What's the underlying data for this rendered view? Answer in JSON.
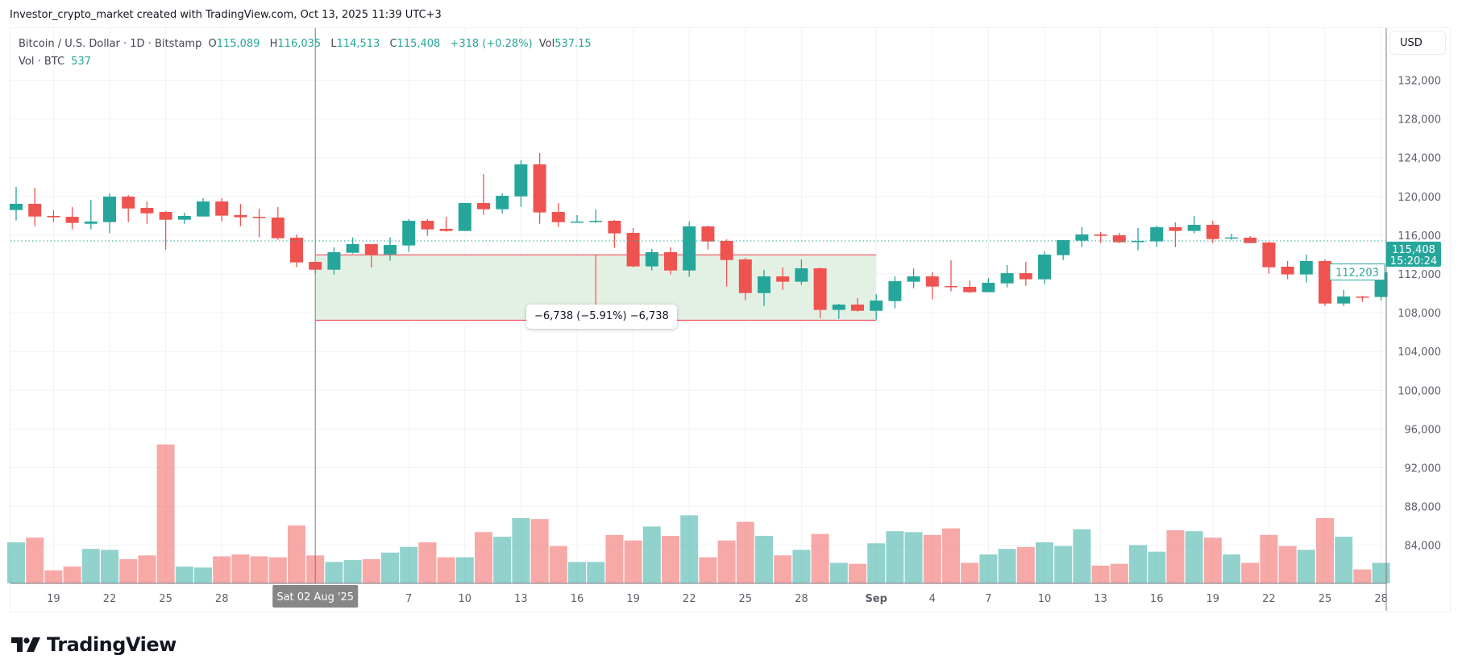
{
  "credit": "Investor_crypto_market created with TradingView.com, Oct 13, 2025 11:39 UTC+3",
  "legend": {
    "symbol": "Bitcoin / U.S. Dollar · 1D · Bitstamp",
    "o_label": "O",
    "o": "115,089",
    "h_label": "H",
    "h": "116,035",
    "l_label": "L",
    "l": "114,513",
    "c_label": "C",
    "c": "115,408",
    "change": "+318 (+0.28%)",
    "vol_label": "Vol",
    "vol": "537.15",
    "vol_series": "Vol · BTC",
    "vol_series_value": "537"
  },
  "currency_button": "USD",
  "last_price_label": "115,408",
  "countdown_label": "15:20:24",
  "crosshair_price_label": "112,203",
  "crosshair_date_label": "Sat 02 Aug '25",
  "measure_label": "−6,738 (−5.91%) −6,738",
  "logo_text": "TradingView",
  "colors": {
    "up": "#26a69a",
    "down": "#ef5350",
    "measure_fill": "#e3f1e4",
    "measure_line": "#f23645"
  },
  "chart_data": {
    "type": "candlestick",
    "title": "Bitcoin / U.S. Dollar · 1D · Bitstamp",
    "ylabel": "USD",
    "price_ticks": [
      84000,
      88000,
      92000,
      96000,
      100000,
      104000,
      108000,
      112000,
      116000,
      120000,
      124000,
      128000,
      132000
    ],
    "time_labels": [
      {
        "day": 2,
        "label": "19"
      },
      {
        "day": 5,
        "label": "22"
      },
      {
        "day": 8,
        "label": "25"
      },
      {
        "day": 11,
        "label": "28"
      },
      {
        "day": 21,
        "label": "7"
      },
      {
        "day": 24,
        "label": "10"
      },
      {
        "day": 27,
        "label": "13"
      },
      {
        "day": 30,
        "label": "16"
      },
      {
        "day": 33,
        "label": "19"
      },
      {
        "day": 36,
        "label": "22"
      },
      {
        "day": 39,
        "label": "25"
      },
      {
        "day": 42,
        "label": "28"
      },
      {
        "day": 46,
        "label": "Sep",
        "bold": true
      },
      {
        "day": 49,
        "label": "4"
      },
      {
        "day": 52,
        "label": "7"
      },
      {
        "day": 55,
        "label": "10"
      },
      {
        "day": 58,
        "label": "13"
      },
      {
        "day": 61,
        "label": "16"
      },
      {
        "day": 64,
        "label": "19"
      },
      {
        "day": 67,
        "label": "22"
      },
      {
        "day": 70,
        "label": "25"
      },
      {
        "day": 73,
        "label": "28"
      }
    ],
    "first_date": "2025-07-17",
    "last_price": 115408,
    "crosshair_day": 16,
    "crosshair_price": 112203,
    "measure": {
      "start_day": 16,
      "end_day": 46,
      "from_price": 113970,
      "to_price": 107232,
      "change": -6738,
      "change_pct": -5.91
    },
    "ohlcv": [
      [
        118600,
        120980,
        117520,
        119240,
        880
      ],
      [
        119240,
        120900,
        116930,
        117930,
        980
      ],
      [
        117990,
        118570,
        117350,
        117850,
        280
      ],
      [
        117900,
        118900,
        116600,
        117270,
        360
      ],
      [
        117180,
        119650,
        116600,
        117410,
        740
      ],
      [
        117350,
        120320,
        116190,
        119980,
        720
      ],
      [
        119980,
        120150,
        117350,
        118760,
        520
      ],
      [
        118820,
        119480,
        117180,
        118260,
        600
      ],
      [
        118400,
        118490,
        114520,
        117600,
        2980
      ],
      [
        117600,
        118320,
        117180,
        117990,
        360
      ],
      [
        117930,
        119820,
        117930,
        119480,
        340
      ],
      [
        119480,
        119820,
        117430,
        118020,
        580
      ],
      [
        118070,
        119240,
        116930,
        117850,
        620
      ],
      [
        117900,
        118740,
        115770,
        117770,
        580
      ],
      [
        117820,
        118900,
        115520,
        115690,
        560
      ],
      [
        115740,
        116080,
        112690,
        113190,
        1240
      ],
      [
        113250,
        113250,
        112030,
        112440,
        600
      ],
      [
        112440,
        114740,
        111950,
        114250,
        460
      ],
      [
        114190,
        115770,
        114110,
        115080,
        500
      ],
      [
        115080,
        115080,
        112690,
        114000,
        520
      ],
      [
        114020,
        115770,
        113360,
        114990,
        660
      ],
      [
        114940,
        117660,
        114270,
        117490,
        780
      ],
      [
        117490,
        117660,
        115940,
        116600,
        880
      ],
      [
        116660,
        117900,
        116350,
        116440,
        560
      ],
      [
        116440,
        119320,
        116440,
        119320,
        560
      ],
      [
        119320,
        122310,
        118100,
        118680,
        1100
      ],
      [
        118680,
        120320,
        118260,
        120070,
        1000
      ],
      [
        120010,
        123730,
        118930,
        123310,
        1400
      ],
      [
        123310,
        124470,
        117180,
        118350,
        1380
      ],
      [
        118400,
        119320,
        116850,
        117350,
        800
      ],
      [
        117350,
        118070,
        117350,
        117410,
        460
      ],
      [
        117410,
        118650,
        117270,
        117490,
        460
      ],
      [
        117490,
        117570,
        114690,
        116190,
        1040
      ],
      [
        116240,
        116740,
        112690,
        112780,
        920
      ],
      [
        112780,
        114580,
        112360,
        114250,
        1220
      ],
      [
        114250,
        114740,
        111950,
        112360,
        1020
      ],
      [
        112360,
        117410,
        111700,
        116910,
        1460
      ],
      [
        116910,
        116990,
        114520,
        115350,
        560
      ],
      [
        115410,
        115580,
        110700,
        113440,
        920
      ],
      [
        113500,
        113660,
        109280,
        110030,
        1320
      ],
      [
        110030,
        112440,
        108700,
        111750,
        1020
      ],
      [
        111750,
        112670,
        110360,
        111200,
        600
      ],
      [
        111200,
        113500,
        110860,
        112580,
        720
      ],
      [
        112580,
        112670,
        107450,
        108290,
        1060
      ],
      [
        108290,
        108920,
        107370,
        108840,
        440
      ],
      [
        108840,
        109510,
        108120,
        108200,
        420
      ],
      [
        108200,
        109920,
        107290,
        109260,
        860
      ],
      [
        109200,
        111750,
        108450,
        111250,
        1120
      ],
      [
        111200,
        112580,
        110530,
        111750,
        1100
      ],
      [
        111750,
        112170,
        109370,
        110700,
        1040
      ],
      [
        110750,
        113410,
        110200,
        110670,
        1180
      ],
      [
        110670,
        111340,
        110030,
        110120,
        440
      ],
      [
        110120,
        111590,
        110120,
        111090,
        620
      ],
      [
        111030,
        112920,
        110620,
        112080,
        740
      ],
      [
        112080,
        113250,
        110780,
        111450,
        780
      ],
      [
        111450,
        114330,
        110950,
        114000,
        880
      ],
      [
        113940,
        115490,
        113440,
        115490,
        800
      ],
      [
        115440,
        116820,
        114770,
        116080,
        1160
      ],
      [
        116080,
        116330,
        115190,
        115940,
        380
      ],
      [
        115990,
        116240,
        115190,
        115270,
        420
      ],
      [
        115360,
        116740,
        114440,
        115410,
        820
      ],
      [
        115360,
        116990,
        114770,
        116820,
        680
      ],
      [
        116820,
        117320,
        114770,
        116440,
        1140
      ],
      [
        116440,
        117990,
        116190,
        117070,
        1120
      ],
      [
        117070,
        117490,
        115190,
        115600,
        980
      ],
      [
        115690,
        116160,
        115520,
        115770,
        620
      ],
      [
        115740,
        115910,
        115190,
        115190,
        440
      ],
      [
        115240,
        115330,
        112030,
        112690,
        1040
      ],
      [
        112750,
        113330,
        111450,
        111950,
        800
      ],
      [
        111950,
        114000,
        111110,
        113330,
        720
      ],
      [
        113330,
        113500,
        108700,
        108950,
        1400
      ],
      [
        108950,
        110340,
        108700,
        109670,
        1000
      ],
      [
        109670,
        109760,
        109120,
        109620,
        300
      ],
      [
        109620,
        112330,
        109280,
        112170,
        440
      ]
    ]
  }
}
